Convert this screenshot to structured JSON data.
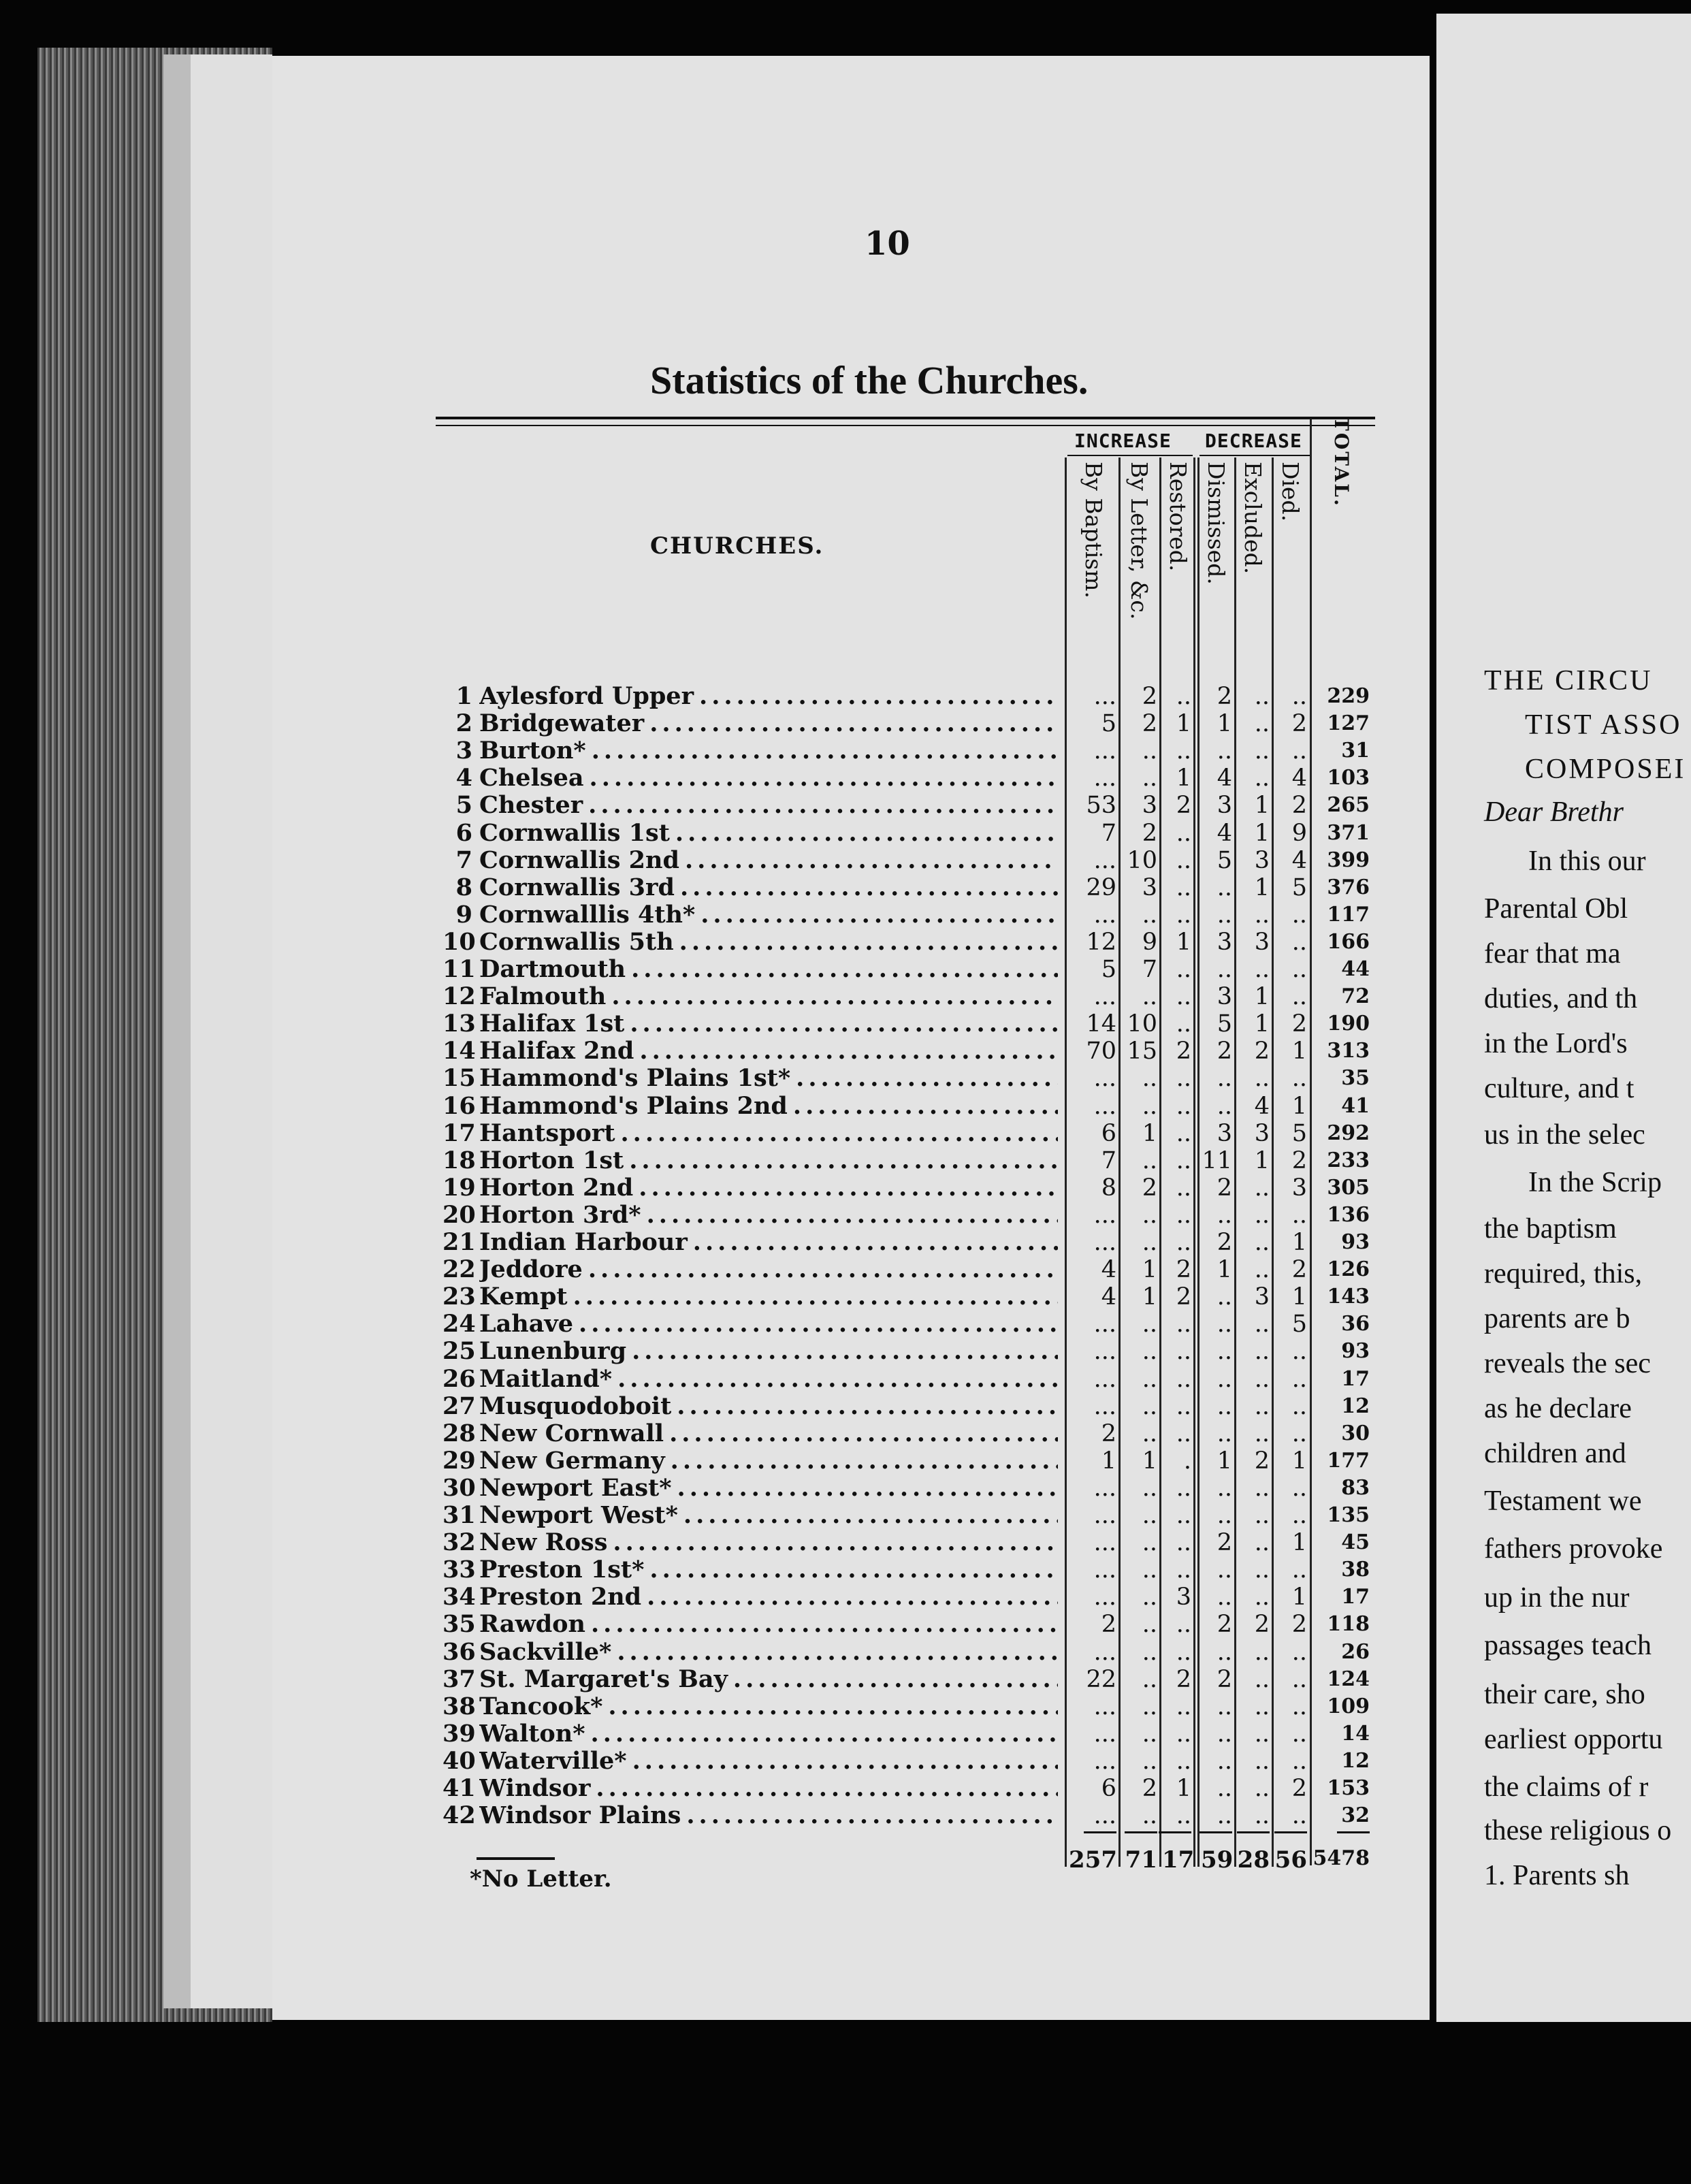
{
  "page_number": "10",
  "title": "Statistics of the Churches.",
  "table": {
    "churches_header": "CHURCHES.",
    "increase_header": "INCREASE",
    "decrease_header": "DECREASE",
    "columns": [
      "By Baptism.",
      "By Letter, &c.",
      "Restored.",
      "Dismissed.",
      "Excluded.",
      "Died.",
      "TOTAL."
    ],
    "rows": [
      {
        "n": "1",
        "name": "Aylesford Upper",
        "v": [
          "...",
          "2",
          "..",
          "2",
          "..",
          "..",
          "229"
        ]
      },
      {
        "n": "2",
        "name": "Bridgewater",
        "v": [
          "5",
          "2",
          "1",
          "1",
          "..",
          "2",
          "127"
        ]
      },
      {
        "n": "3",
        "name": "Burton*",
        "v": [
          "...",
          "..",
          "..",
          "..",
          "..",
          "..",
          "31"
        ]
      },
      {
        "n": "4",
        "name": "Chelsea",
        "v": [
          "...",
          "..",
          "1",
          "4",
          "..",
          "4",
          "103"
        ]
      },
      {
        "n": "5",
        "name": "Chester",
        "v": [
          "53",
          "3",
          "2",
          "3",
          "1",
          "2",
          "265"
        ]
      },
      {
        "n": "6",
        "name": "Cornwallis 1st",
        "v": [
          "7",
          "2",
          "..",
          "4",
          "1",
          "9",
          "371"
        ]
      },
      {
        "n": "7",
        "name": "Cornwallis 2nd",
        "v": [
          "...",
          "10",
          "..",
          "5",
          "3",
          "4",
          "399"
        ]
      },
      {
        "n": "8",
        "name": "Cornwallis 3rd",
        "v": [
          "29",
          "3",
          "..",
          "..",
          "1",
          "5",
          "376"
        ]
      },
      {
        "n": "9",
        "name": "Cornwalllis 4th*",
        "v": [
          "...",
          "..",
          "..",
          "..",
          "..",
          "..",
          "117"
        ]
      },
      {
        "n": "10",
        "name": "Cornwallis 5th",
        "v": [
          "12",
          "9",
          "1",
          "3",
          "3",
          "..",
          "166"
        ]
      },
      {
        "n": "11",
        "name": "Dartmouth",
        "v": [
          "5",
          "7",
          "..",
          "..",
          "..",
          "..",
          "44"
        ]
      },
      {
        "n": "12",
        "name": "Falmouth",
        "v": [
          "...",
          "..",
          "..",
          "3",
          "1",
          "..",
          "72"
        ]
      },
      {
        "n": "13",
        "name": "Halifax 1st",
        "v": [
          "14",
          "10",
          "..",
          "5",
          "1",
          "2",
          "190"
        ]
      },
      {
        "n": "14",
        "name": "Halifax 2nd",
        "v": [
          "70",
          "15",
          "2",
          "2",
          "2",
          "1",
          "313"
        ]
      },
      {
        "n": "15",
        "name": "Hammond's Plains 1st*",
        "v": [
          "...",
          "..",
          "..",
          "..",
          "..",
          "..",
          "35"
        ]
      },
      {
        "n": "16",
        "name": "Hammond's Plains 2nd",
        "v": [
          "...",
          "..",
          "..",
          "..",
          "4",
          "1",
          "41"
        ]
      },
      {
        "n": "17",
        "name": "Hantsport",
        "v": [
          "6",
          "1",
          "..",
          "3",
          "3",
          "5",
          "292"
        ]
      },
      {
        "n": "18",
        "name": "Horton 1st",
        "v": [
          "7",
          "..",
          "..",
          "11",
          "1",
          "2",
          "233"
        ]
      },
      {
        "n": "19",
        "name": "Horton 2nd",
        "v": [
          "8",
          "2",
          "..",
          "2",
          "..",
          "3",
          "305"
        ]
      },
      {
        "n": "20",
        "name": "Horton 3rd*",
        "v": [
          "...",
          "..",
          "..",
          "..",
          "..",
          "..",
          "136"
        ]
      },
      {
        "n": "21",
        "name": "Indian Harbour",
        "v": [
          "...",
          "..",
          "..",
          "2",
          "..",
          "1",
          "93"
        ]
      },
      {
        "n": "22",
        "name": "Jeddore",
        "v": [
          "4",
          "1",
          "2",
          "1",
          "..",
          "2",
          "126"
        ]
      },
      {
        "n": "23",
        "name": "Kempt",
        "v": [
          "4",
          "1",
          "2",
          "..",
          "3",
          "1",
          "143"
        ]
      },
      {
        "n": "24",
        "name": "Lahave",
        "v": [
          "...",
          "..",
          "..",
          "..",
          "..",
          "5",
          "36"
        ]
      },
      {
        "n": "25",
        "name": "Lunenburg",
        "v": [
          "...",
          "..",
          "..",
          "..",
          "..",
          "..",
          "93"
        ]
      },
      {
        "n": "26",
        "name": "Maitland*",
        "v": [
          "...",
          "..",
          "..",
          "..",
          "..",
          "..",
          "17"
        ]
      },
      {
        "n": "27",
        "name": "Musquodoboit",
        "v": [
          "...",
          "..",
          "..",
          "..",
          "..",
          "..",
          "12"
        ]
      },
      {
        "n": "28",
        "name": "New Cornwall",
        "v": [
          "2",
          "..",
          "..",
          "..",
          "..",
          "..",
          "30"
        ]
      },
      {
        "n": "29",
        "name": "New Germany",
        "v": [
          "1",
          "1",
          ".",
          "1",
          "2",
          "1",
          "177"
        ]
      },
      {
        "n": "30",
        "name": "Newport East*",
        "v": [
          "...",
          "..",
          "..",
          "..",
          "..",
          "..",
          "83"
        ]
      },
      {
        "n": "31",
        "name": "Newport West*",
        "v": [
          "...",
          "..",
          "..",
          "..",
          "..",
          "..",
          "135"
        ]
      },
      {
        "n": "32",
        "name": "New Ross",
        "v": [
          "...",
          "..",
          "..",
          "2",
          "..",
          "1",
          "45"
        ]
      },
      {
        "n": "33",
        "name": "Preston 1st*",
        "v": [
          "...",
          "..",
          "..",
          "..",
          "..",
          "..",
          "38"
        ]
      },
      {
        "n": "34",
        "name": "Preston 2nd",
        "v": [
          "...",
          "..",
          "3",
          "..",
          "..",
          "1",
          "17"
        ]
      },
      {
        "n": "35",
        "name": "Rawdon",
        "v": [
          "2",
          "..",
          "..",
          "2",
          "2",
          "2",
          "118"
        ]
      },
      {
        "n": "36",
        "name": "Sackville*",
        "v": [
          "...",
          "..",
          "..",
          "..",
          "..",
          "..",
          "26"
        ]
      },
      {
        "n": "37",
        "name": "St. Margaret's Bay",
        "v": [
          "22",
          "..",
          "2",
          "2",
          "..",
          "..",
          "124"
        ]
      },
      {
        "n": "38",
        "name": "Tancook*",
        "v": [
          "...",
          "..",
          "..",
          "..",
          "..",
          "..",
          "109"
        ]
      },
      {
        "n": "39",
        "name": "Walton*",
        "v": [
          "...",
          "..",
          "..",
          "..",
          "..",
          "..",
          "14"
        ]
      },
      {
        "n": "40",
        "name": "Waterville*",
        "v": [
          "...",
          "..",
          "..",
          "..",
          "..",
          "..",
          "12"
        ]
      },
      {
        "n": "41",
        "name": "Windsor",
        "v": [
          "6",
          "2",
          "1",
          "..",
          "..",
          "2",
          "153"
        ]
      },
      {
        "n": "42",
        "name": "Windsor Plains",
        "v": [
          "...",
          "..",
          "..",
          "..",
          "..",
          "..",
          "32"
        ]
      }
    ],
    "totals": [
      "257",
      "71",
      "17",
      "59",
      "28",
      "56",
      "5478"
    ]
  },
  "footnote": "*No Letter.",
  "right_page_lines": [
    "THE CIRCU",
    "TIST ASSO",
    "COMPOSEI",
    "Dear Brethr",
    "In this our",
    "Parental Obl",
    "fear that ma",
    "duties, and th",
    "in the Lord's",
    "culture, and t",
    "us in the selec",
    "In the Scrip",
    "the baptism",
    "required, this,",
    "parents are b",
    "reveals the sec",
    "as he declare",
    "children and",
    "Testament we",
    "fathers provoke",
    "up in the nur",
    "passages teach",
    "their care, sho",
    "earliest opportu",
    "the claims of r",
    "these religious o",
    "1. Parents sh"
  ]
}
